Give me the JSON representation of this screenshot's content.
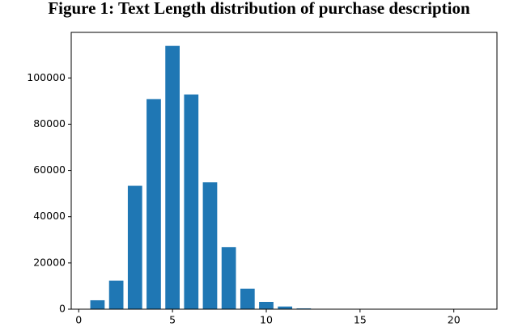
{
  "chart_data": {
    "type": "bar",
    "title": "Figure 1: Text Length distribution of purchase description",
    "x": [
      1,
      2,
      3,
      4,
      5,
      6,
      7,
      8,
      9,
      10,
      11,
      12,
      13,
      14,
      15,
      16,
      17,
      18,
      19,
      20,
      21
    ],
    "values": [
      4000,
      12500,
      53500,
      91000,
      114000,
      93000,
      55000,
      27000,
      9000,
      3300,
      1300,
      500,
      200,
      100,
      60,
      40,
      30,
      20,
      10,
      10,
      10
    ],
    "color": "#1f77b4",
    "xlim": [
      -0.4,
      22.3
    ],
    "xticks": [
      0,
      5,
      10,
      15,
      20
    ],
    "ylim": [
      0,
      119700
    ],
    "yticks": [
      0,
      20000,
      40000,
      60000,
      80000,
      100000
    ]
  }
}
